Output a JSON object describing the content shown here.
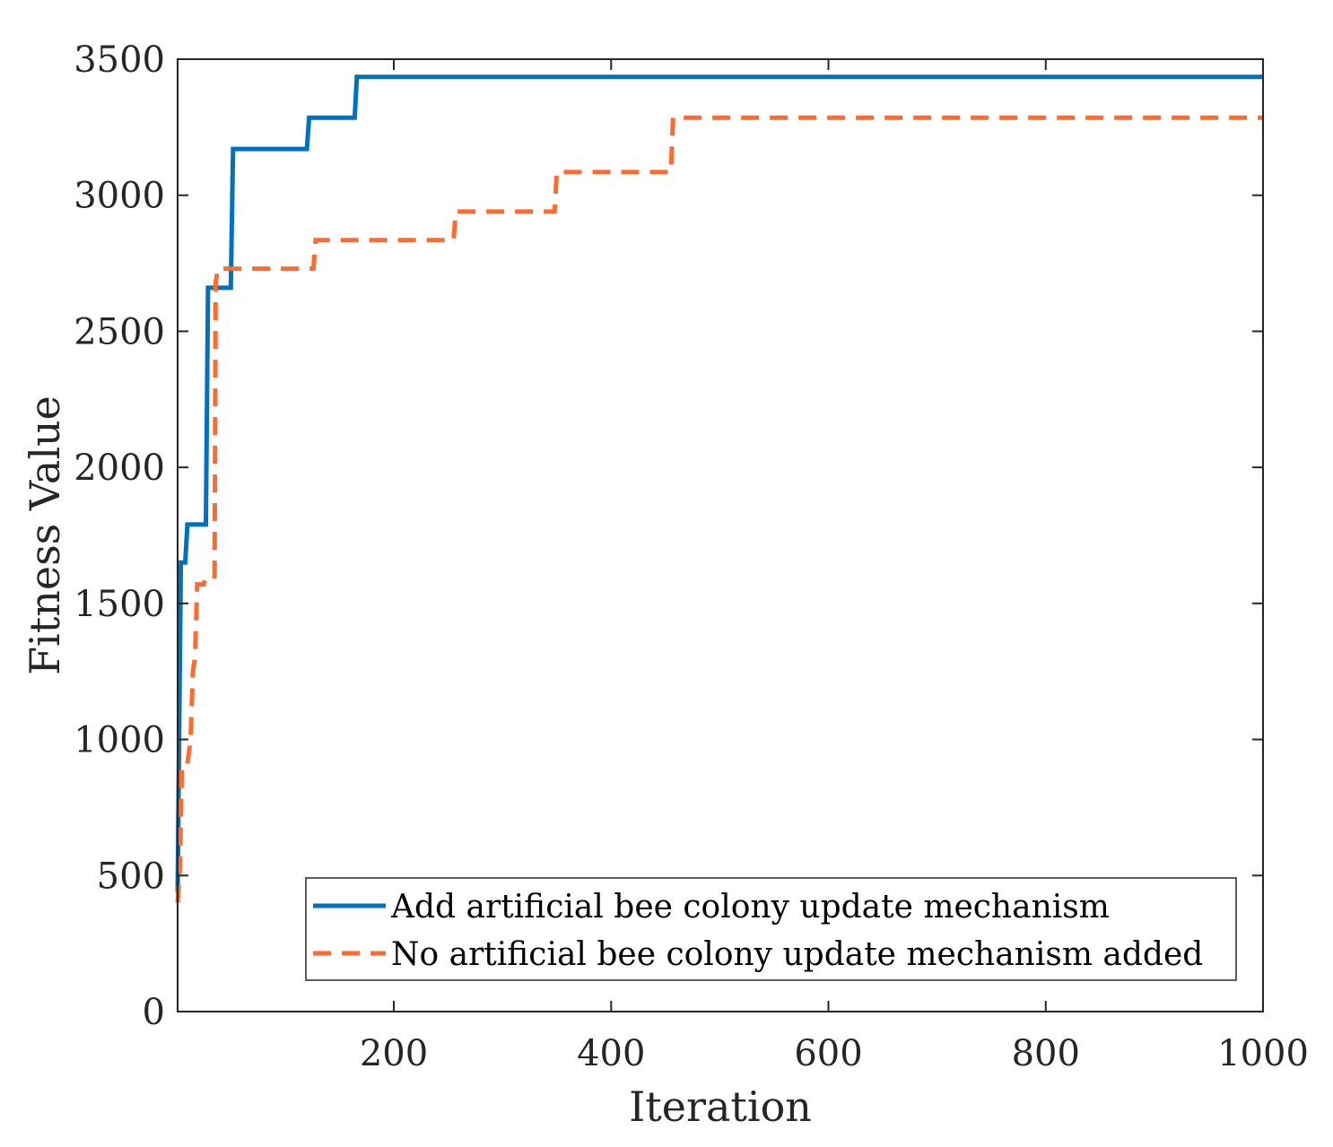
{
  "chart_data": {
    "type": "line",
    "title": "",
    "xlabel": "Iteration",
    "ylabel": "Fitness Value",
    "xlim": [
      1,
      1000
    ],
    "ylim": [
      0,
      3500
    ],
    "xticks": [
      200,
      400,
      600,
      800,
      1000
    ],
    "xtick_labels": [
      "200",
      "400",
      "600",
      "800",
      "1000"
    ],
    "yticks": [
      0,
      500,
      1000,
      1500,
      2000,
      2500,
      3000,
      3500
    ],
    "ytick_labels": [
      "0",
      "500",
      "1000",
      "1500",
      "2000",
      "2500",
      "3000",
      "3500"
    ],
    "grid": false,
    "legend_position": "bottom-right",
    "series": [
      {
        "name": "Add artificial bee colony update mechanism",
        "color": "#0072BD",
        "style": "solid",
        "x": [
          1,
          3,
          4,
          8,
          10,
          27,
          29,
          50,
          52,
          120,
          122,
          164,
          166,
          1000
        ],
        "y": [
          440,
          1250,
          1650,
          1650,
          1790,
          1790,
          2660,
          2660,
          3170,
          3170,
          3285,
          3285,
          3435,
          3435
        ]
      },
      {
        "name": "No artificial bee colony update mechanism added",
        "color": "#FF6B2E",
        "style": "dashed",
        "x": [
          1,
          3,
          5,
          8,
          10,
          13,
          15,
          17,
          19,
          25,
          27,
          35,
          36,
          38,
          40,
          126,
          128,
          255,
          257,
          348,
          350,
          455,
          457,
          1000
        ],
        "y": [
          400,
          520,
          900,
          900,
          910,
          1000,
          1250,
          1300,
          1570,
          1570,
          1600,
          1600,
          2680,
          2730,
          2730,
          2730,
          2835,
          2835,
          2940,
          2940,
          3085,
          3085,
          3285,
          3285
        ]
      }
    ]
  }
}
